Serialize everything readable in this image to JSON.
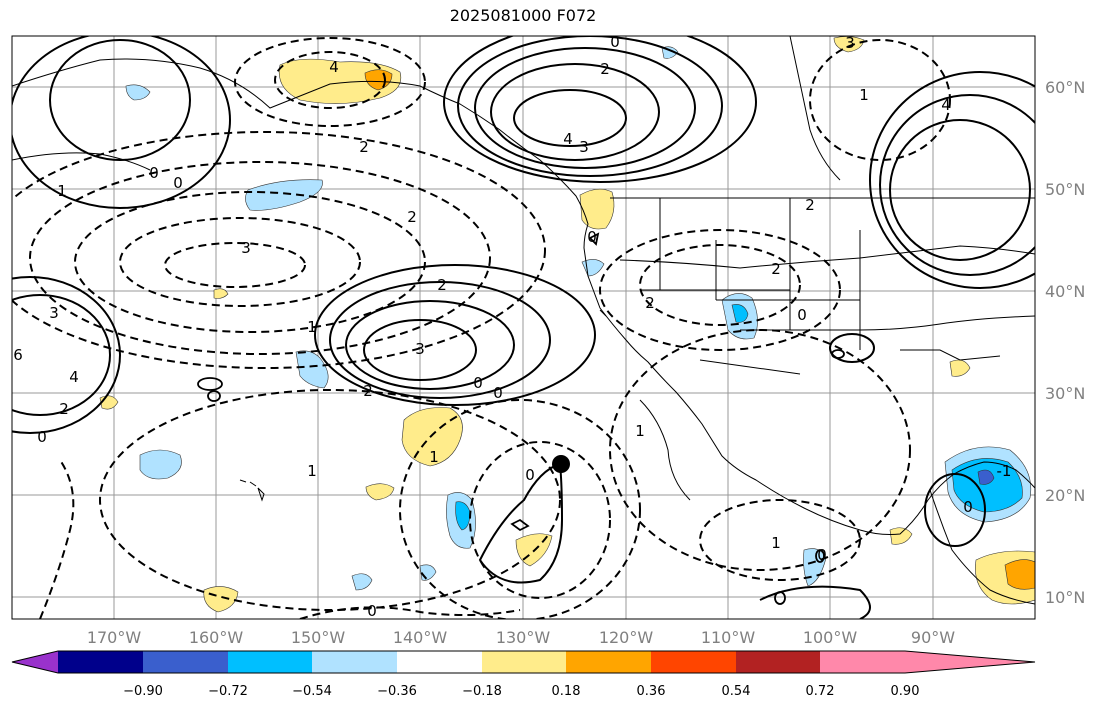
{
  "title": "2025081000 F072",
  "map": {
    "lon_ticks": [
      "170°W",
      "160°W",
      "150°W",
      "140°W",
      "130°W",
      "120°W",
      "110°W",
      "100°W",
      "90°W"
    ],
    "lat_ticks": [
      "60°N",
      "50°N",
      "40°N",
      "30°N",
      "20°N",
      "10°N"
    ],
    "marker": "storm-center-dot",
    "contour_labels": [
      {
        "id": "c1",
        "text": "0"
      },
      {
        "id": "c2",
        "text": "2"
      },
      {
        "id": "c3",
        "text": "4"
      },
      {
        "id": "c4",
        "text": "3"
      },
      {
        "id": "c5",
        "text": "2"
      },
      {
        "id": "c6",
        "text": "3"
      },
      {
        "id": "c7",
        "text": "2"
      },
      {
        "id": "c8",
        "text": "0"
      },
      {
        "id": "c9",
        "text": "1"
      },
      {
        "id": "c10",
        "text": "0"
      },
      {
        "id": "c11",
        "text": "3"
      },
      {
        "id": "c12",
        "text": "2"
      },
      {
        "id": "c13",
        "text": "2"
      },
      {
        "id": "c14",
        "text": "4"
      },
      {
        "id": "c15",
        "text": "3"
      },
      {
        "id": "c16",
        "text": "1"
      },
      {
        "id": "c17",
        "text": "2"
      },
      {
        "id": "c18",
        "text": "0"
      },
      {
        "id": "c19",
        "text": "0"
      },
      {
        "id": "c20",
        "text": "1"
      },
      {
        "id": "c21",
        "text": "0"
      },
      {
        "id": "c22",
        "text": "1"
      },
      {
        "id": "c23",
        "text": "0"
      },
      {
        "id": "c24",
        "text": "2"
      },
      {
        "id": "c25",
        "text": "2"
      },
      {
        "id": "c26",
        "text": "0"
      },
      {
        "id": "c27",
        "text": "0"
      },
      {
        "id": "c28",
        "text": "1"
      },
      {
        "id": "c29",
        "text": "1"
      },
      {
        "id": "c30",
        "text": "0"
      },
      {
        "id": "c31",
        "text": "3"
      },
      {
        "id": "c32",
        "text": "4"
      },
      {
        "id": "c33",
        "text": "4"
      },
      {
        "id": "c34",
        "text": "1"
      },
      {
        "id": "c35",
        "text": "6"
      },
      {
        "id": "c36",
        "text": "0"
      },
      {
        "id": "c37",
        "text": "0"
      },
      {
        "id": "c38",
        "text": "2"
      },
      {
        "id": "c39",
        "text": "-1"
      }
    ]
  },
  "colorbar": {
    "ticks": [
      "−0.90",
      "−0.72",
      "−0.54",
      "−0.36",
      "−0.18",
      "0.18",
      "0.36",
      "0.54",
      "0.72",
      "0.90"
    ],
    "colors": [
      "#9932cc",
      "#00008b",
      "#3a5fcd",
      "#00bfff",
      "#b0e2ff",
      "#ffffff",
      "#ffec8b",
      "#ffa500",
      "#ff4500",
      "#b22222",
      "#ff88aa"
    ]
  }
}
